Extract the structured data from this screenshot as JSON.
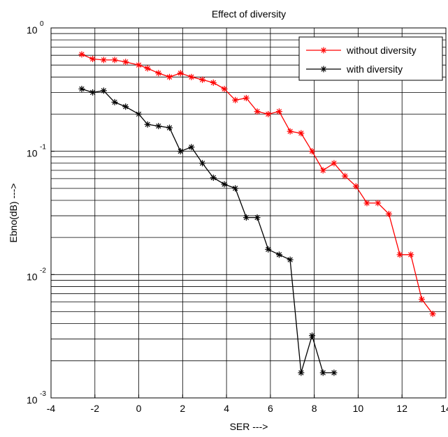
{
  "chart_data": {
    "type": "line",
    "title": "Effect of diversity",
    "xlabel": "SER --->",
    "ylabel": "Ebno(dB) --->",
    "xlim": [
      -4,
      14
    ],
    "ylim": [
      0.001,
      1
    ],
    "yscale": "log",
    "grid": true,
    "legend_position": "top-right",
    "x_ticks": [
      "-4",
      "-2",
      "0",
      "2",
      "4",
      "6",
      "8",
      "10",
      "12",
      "14"
    ],
    "y_ticks": [
      {
        "base": "10",
        "exp": "-3"
      },
      {
        "base": "10",
        "exp": "-2"
      },
      {
        "base": "10",
        "exp": "-1"
      },
      {
        "base": "10",
        "exp": "0"
      }
    ],
    "series": [
      {
        "name": "without diversity",
        "color": "#ff0000",
        "marker": "*",
        "x": [
          -2.6,
          -2.1,
          -1.6,
          -1.1,
          -0.6,
          0,
          0.4,
          0.9,
          1.4,
          1.9,
          2.4,
          2.9,
          3.4,
          3.9,
          4.4,
          4.9,
          5.4,
          5.9,
          6.4,
          6.9,
          7.4,
          7.9,
          8.4,
          8.9,
          9.4,
          9.9,
          10.4,
          10.9,
          11.4,
          11.9,
          12.4,
          12.9,
          13.4
        ],
        "y": [
          0.61,
          0.56,
          0.55,
          0.55,
          0.53,
          0.5,
          0.47,
          0.43,
          0.4,
          0.43,
          0.4,
          0.38,
          0.36,
          0.32,
          0.26,
          0.27,
          0.21,
          0.2,
          0.21,
          0.145,
          0.14,
          0.1,
          0.07,
          0.08,
          0.063,
          0.052,
          0.038,
          0.038,
          0.031,
          0.0145,
          0.0145,
          0.0063,
          0.0048
        ]
      },
      {
        "name": "with diversity",
        "color": "#000000",
        "marker": "*",
        "x": [
          -2.6,
          -2.1,
          -1.6,
          -1.1,
          -0.6,
          0,
          0.4,
          0.9,
          1.4,
          1.9,
          2.4,
          2.9,
          3.4,
          3.9,
          4.4,
          4.9,
          5.4,
          5.9,
          6.4,
          6.9,
          7.4,
          7.9,
          8.4,
          8.9
        ],
        "y": [
          0.32,
          0.3,
          0.31,
          0.25,
          0.23,
          0.2,
          0.165,
          0.16,
          0.155,
          0.1,
          0.108,
          0.08,
          0.061,
          0.054,
          0.05,
          0.029,
          0.029,
          0.016,
          0.0145,
          0.0132,
          0.0016,
          0.0032,
          0.0016,
          0.0016
        ]
      }
    ]
  }
}
